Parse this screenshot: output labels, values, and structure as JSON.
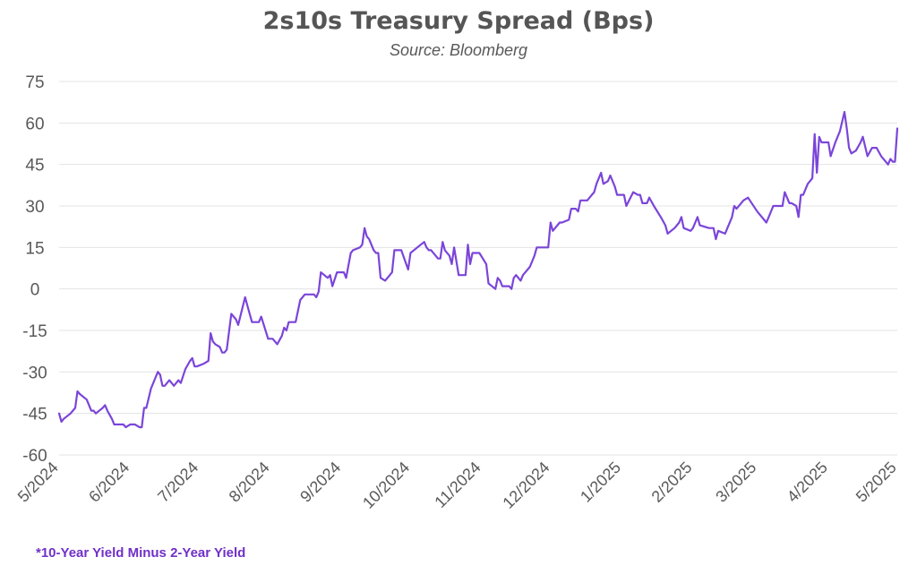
{
  "chart_data": {
    "type": "line",
    "title": "2s10s Treasury Spread (Bps)",
    "subtitle": "Source: Bloomberg",
    "footnote": "*10-Year Yield Minus 2-Year Yield",
    "line_color": "#7b45d9",
    "grid": true,
    "ylim": [
      -60,
      75
    ],
    "yticks": [
      75,
      60,
      45,
      30,
      15,
      0,
      -15,
      -30,
      -45,
      -60
    ],
    "xlim": [
      "2024-05-01",
      "2025-05-01"
    ],
    "xticks": [
      "5/2024",
      "6/2024",
      "7/2024",
      "8/2024",
      "9/2024",
      "10/2024",
      "11/2024",
      "12/2024",
      "1/2025",
      "2/2025",
      "3/2025",
      "4/2025",
      "5/2025"
    ],
    "xtick_dates": [
      "2024-05-01",
      "2024-06-01",
      "2024-07-01",
      "2024-08-01",
      "2024-09-01",
      "2024-10-01",
      "2024-11-01",
      "2024-12-01",
      "2025-01-01",
      "2025-02-01",
      "2025-03-01",
      "2025-04-01",
      "2025-05-01"
    ],
    "series": [
      {
        "points": [
          [
            "2024-05-01",
            -45
          ],
          [
            "2024-05-02",
            -48
          ],
          [
            "2024-05-03",
            -47
          ],
          [
            "2024-05-06",
            -45
          ],
          [
            "2024-05-08",
            -43
          ],
          [
            "2024-05-09",
            -37
          ],
          [
            "2024-05-10",
            -38
          ],
          [
            "2024-05-13",
            -40
          ],
          [
            "2024-05-15",
            -44
          ],
          [
            "2024-05-16",
            -44
          ],
          [
            "2024-05-17",
            -45
          ],
          [
            "2024-05-20",
            -43
          ],
          [
            "2024-05-21",
            -42
          ],
          [
            "2024-05-22",
            -44
          ],
          [
            "2024-05-24",
            -47
          ],
          [
            "2024-05-25",
            -49
          ],
          [
            "2024-05-27",
            -49
          ],
          [
            "2024-05-29",
            -49
          ],
          [
            "2024-05-30",
            -50
          ],
          [
            "2024-06-01",
            -49
          ],
          [
            "2024-06-03",
            -49
          ],
          [
            "2024-06-05",
            -50
          ],
          [
            "2024-06-06",
            -50
          ],
          [
            "2024-06-07",
            -43
          ],
          [
            "2024-06-08",
            -43
          ],
          [
            "2024-06-10",
            -36
          ],
          [
            "2024-06-12",
            -32
          ],
          [
            "2024-06-13",
            -30
          ],
          [
            "2024-06-14",
            -31
          ],
          [
            "2024-06-15",
            -35
          ],
          [
            "2024-06-16",
            -35
          ],
          [
            "2024-06-18",
            -33
          ],
          [
            "2024-06-20",
            -35
          ],
          [
            "2024-06-22",
            -33
          ],
          [
            "2024-06-23",
            -34
          ],
          [
            "2024-06-25",
            -29
          ],
          [
            "2024-06-27",
            -26
          ],
          [
            "2024-06-28",
            -25
          ],
          [
            "2024-06-29",
            -28
          ],
          [
            "2024-06-30",
            -28
          ],
          [
            "2024-07-03",
            -27
          ],
          [
            "2024-07-05",
            -26
          ],
          [
            "2024-07-06",
            -16
          ],
          [
            "2024-07-07",
            -19
          ],
          [
            "2024-07-08",
            -20
          ],
          [
            "2024-07-10",
            -21
          ],
          [
            "2024-07-11",
            -23
          ],
          [
            "2024-07-12",
            -23
          ],
          [
            "2024-07-13",
            -22
          ],
          [
            "2024-07-15",
            -9
          ],
          [
            "2024-07-17",
            -11
          ],
          [
            "2024-07-18",
            -13
          ],
          [
            "2024-07-21",
            -3
          ],
          [
            "2024-07-23",
            -9
          ],
          [
            "2024-07-24",
            -12
          ],
          [
            "2024-07-27",
            -12
          ],
          [
            "2024-07-28",
            -10
          ],
          [
            "2024-07-31",
            -18
          ],
          [
            "2024-08-02",
            -18
          ],
          [
            "2024-08-04",
            -20
          ],
          [
            "2024-08-06",
            -17
          ],
          [
            "2024-08-07",
            -14
          ],
          [
            "2024-08-08",
            -15
          ],
          [
            "2024-08-09",
            -12
          ],
          [
            "2024-08-12",
            -12
          ],
          [
            "2024-08-14",
            -4
          ],
          [
            "2024-08-16",
            -2
          ],
          [
            "2024-08-20",
            -2
          ],
          [
            "2024-08-21",
            -3
          ],
          [
            "2024-08-22",
            -1
          ],
          [
            "2024-08-23",
            6
          ],
          [
            "2024-08-26",
            4
          ],
          [
            "2024-08-27",
            5
          ],
          [
            "2024-08-28",
            1
          ],
          [
            "2024-08-30",
            6
          ],
          [
            "2024-09-02",
            6
          ],
          [
            "2024-09-03",
            4
          ],
          [
            "2024-09-05",
            13
          ],
          [
            "2024-09-06",
            14
          ],
          [
            "2024-09-09",
            15
          ],
          [
            "2024-09-10",
            16
          ],
          [
            "2024-09-11",
            22
          ],
          [
            "2024-09-12",
            19
          ],
          [
            "2024-09-13",
            18
          ],
          [
            "2024-09-15",
            14
          ],
          [
            "2024-09-16",
            13
          ],
          [
            "2024-09-17",
            13
          ],
          [
            "2024-09-18",
            4
          ],
          [
            "2024-09-20",
            3
          ],
          [
            "2024-09-22",
            5
          ],
          [
            "2024-09-23",
            6
          ],
          [
            "2024-09-24",
            14
          ],
          [
            "2024-09-27",
            14
          ],
          [
            "2024-09-30",
            7
          ],
          [
            "2024-10-01",
            13
          ],
          [
            "2024-10-04",
            15
          ],
          [
            "2024-10-07",
            17
          ],
          [
            "2024-10-08",
            15
          ],
          [
            "2024-10-09",
            14
          ],
          [
            "2024-10-10",
            14
          ],
          [
            "2024-10-13",
            11
          ],
          [
            "2024-10-14",
            11
          ],
          [
            "2024-10-15",
            17
          ],
          [
            "2024-10-16",
            14
          ],
          [
            "2024-10-18",
            12
          ],
          [
            "2024-10-19",
            9
          ],
          [
            "2024-10-20",
            15
          ],
          [
            "2024-10-22",
            5
          ],
          [
            "2024-10-25",
            5
          ],
          [
            "2024-10-26",
            16
          ],
          [
            "2024-10-27",
            9
          ],
          [
            "2024-10-28",
            13
          ],
          [
            "2024-10-31",
            13
          ],
          [
            "2024-11-03",
            9
          ],
          [
            "2024-11-04",
            2
          ],
          [
            "2024-11-07",
            0
          ],
          [
            "2024-11-08",
            4
          ],
          [
            "2024-11-09",
            3
          ],
          [
            "2024-11-10",
            1
          ],
          [
            "2024-11-11",
            1
          ],
          [
            "2024-11-12",
            1
          ],
          [
            "2024-11-13",
            1
          ],
          [
            "2024-11-14",
            0
          ],
          [
            "2024-11-15",
            4
          ],
          [
            "2024-11-16",
            5
          ],
          [
            "2024-11-18",
            3
          ],
          [
            "2024-11-19",
            5
          ],
          [
            "2024-11-20",
            6
          ],
          [
            "2024-11-22",
            8
          ],
          [
            "2024-11-24",
            12
          ],
          [
            "2024-11-25",
            15
          ],
          [
            "2024-11-29",
            15
          ],
          [
            "2024-11-30",
            15
          ],
          [
            "2024-12-01",
            24
          ],
          [
            "2024-12-02",
            21
          ],
          [
            "2024-12-03",
            22
          ],
          [
            "2024-12-05",
            24
          ],
          [
            "2024-12-06",
            24
          ],
          [
            "2024-12-09",
            25
          ],
          [
            "2024-12-10",
            29
          ],
          [
            "2024-12-12",
            29
          ],
          [
            "2024-12-13",
            28
          ],
          [
            "2024-12-14",
            32
          ],
          [
            "2024-12-15",
            32
          ],
          [
            "2024-12-17",
            32
          ],
          [
            "2024-12-19",
            34
          ],
          [
            "2024-12-20",
            35
          ],
          [
            "2024-12-21",
            38
          ],
          [
            "2024-12-23",
            42
          ],
          [
            "2024-12-24",
            38
          ],
          [
            "2024-12-26",
            39
          ],
          [
            "2024-12-27",
            41
          ],
          [
            "2024-12-29",
            37
          ],
          [
            "2024-12-30",
            34
          ],
          [
            "2025-01-02",
            34
          ],
          [
            "2025-01-03",
            30
          ],
          [
            "2025-01-06",
            35
          ],
          [
            "2025-01-08",
            34
          ],
          [
            "2025-01-09",
            34
          ],
          [
            "2025-01-10",
            31
          ],
          [
            "2025-01-12",
            31
          ],
          [
            "2025-01-13",
            33
          ],
          [
            "2025-01-15",
            30
          ],
          [
            "2025-01-18",
            26
          ],
          [
            "2025-01-20",
            23
          ],
          [
            "2025-01-21",
            20
          ],
          [
            "2025-01-24",
            22
          ],
          [
            "2025-01-26",
            24
          ],
          [
            "2025-01-27",
            26
          ],
          [
            "2025-01-28",
            22
          ],
          [
            "2025-01-31",
            21
          ],
          [
            "2025-02-01",
            22
          ],
          [
            "2025-02-03",
            26
          ],
          [
            "2025-02-04",
            23
          ],
          [
            "2025-02-08",
            22
          ],
          [
            "2025-02-10",
            22
          ],
          [
            "2025-02-11",
            18
          ],
          [
            "2025-02-12",
            21
          ],
          [
            "2025-02-15",
            20
          ],
          [
            "2025-02-18",
            26
          ],
          [
            "2025-02-19",
            30
          ],
          [
            "2025-02-20",
            29
          ],
          [
            "2025-02-23",
            32
          ],
          [
            "2025-02-25",
            33
          ],
          [
            "2025-03-01",
            28
          ],
          [
            "2025-03-05",
            24
          ],
          [
            "2025-03-06",
            26
          ],
          [
            "2025-03-08",
            30
          ],
          [
            "2025-03-11",
            30
          ],
          [
            "2025-03-12",
            30
          ],
          [
            "2025-03-13",
            35
          ],
          [
            "2025-03-15",
            31
          ],
          [
            "2025-03-16",
            31
          ],
          [
            "2025-03-18",
            30
          ],
          [
            "2025-03-19",
            26
          ],
          [
            "2025-03-20",
            34
          ],
          [
            "2025-03-21",
            34
          ],
          [
            "2025-03-23",
            38
          ],
          [
            "2025-03-25",
            40
          ],
          [
            "2025-03-26",
            56
          ],
          [
            "2025-03-27",
            42
          ],
          [
            "2025-03-28",
            55
          ],
          [
            "2025-03-29",
            53
          ],
          [
            "2025-04-01",
            53
          ],
          [
            "2025-04-02",
            48
          ],
          [
            "2025-04-04",
            53
          ],
          [
            "2025-04-06",
            57
          ],
          [
            "2025-04-08",
            64
          ],
          [
            "2025-04-09",
            58
          ],
          [
            "2025-04-10",
            51
          ],
          [
            "2025-04-11",
            49
          ],
          [
            "2025-04-13",
            50
          ],
          [
            "2025-04-15",
            53
          ],
          [
            "2025-04-16",
            55
          ],
          [
            "2025-04-18",
            48
          ],
          [
            "2025-04-20",
            51
          ],
          [
            "2025-04-22",
            51
          ],
          [
            "2025-04-24",
            48
          ],
          [
            "2025-04-27",
            45
          ],
          [
            "2025-04-28",
            47
          ],
          [
            "2025-04-29",
            46
          ],
          [
            "2025-04-30",
            46
          ],
          [
            "2025-05-01",
            58
          ]
        ]
      }
    ]
  }
}
